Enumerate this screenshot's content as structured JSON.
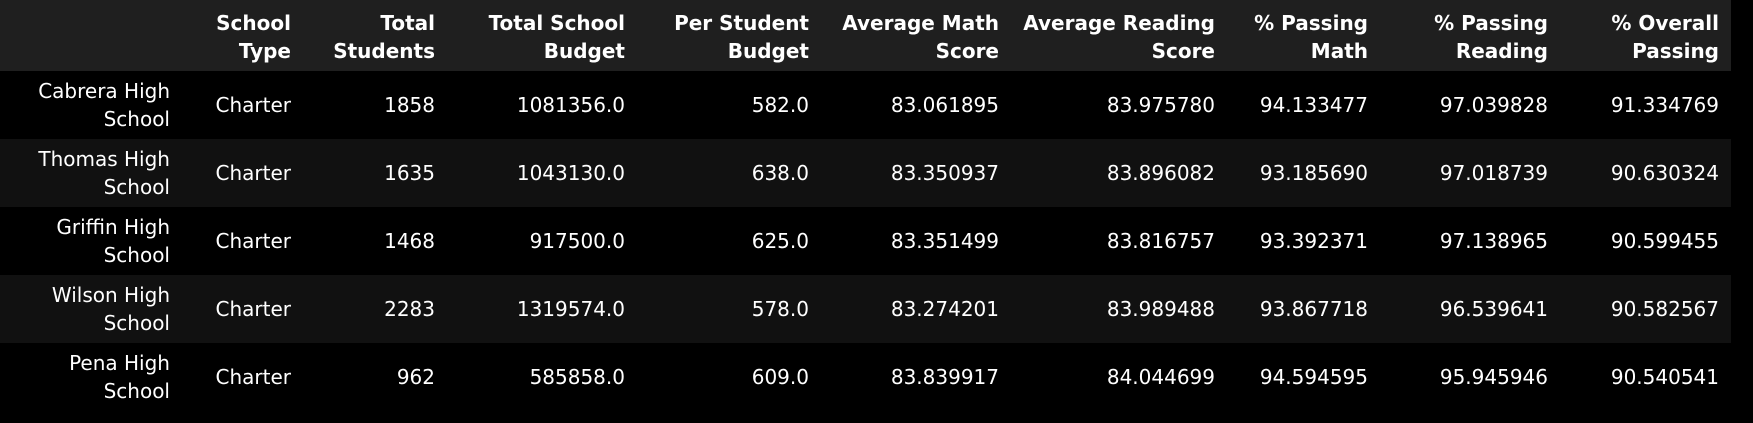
{
  "table": {
    "columns": [
      "",
      "School Type",
      "Total Students",
      "Total School Budget",
      "Per Student Budget",
      "Average Math Score",
      "Average Reading Score",
      "% Passing Math",
      "% Passing Reading",
      "% Overall Passing"
    ],
    "rows": [
      {
        "index": "Cabrera High School",
        "cells": [
          "Charter",
          "1858",
          "1081356.0",
          "582.0",
          "83.061895",
          "83.975780",
          "94.133477",
          "97.039828",
          "91.334769"
        ]
      },
      {
        "index": "Thomas High School",
        "cells": [
          "Charter",
          "1635",
          "1043130.0",
          "638.0",
          "83.350937",
          "83.896082",
          "93.185690",
          "97.018739",
          "90.630324"
        ]
      },
      {
        "index": "Griffin High School",
        "cells": [
          "Charter",
          "1468",
          "917500.0",
          "625.0",
          "83.351499",
          "83.816757",
          "93.392371",
          "97.138965",
          "90.599455"
        ]
      },
      {
        "index": "Wilson High School",
        "cells": [
          "Charter",
          "2283",
          "1319574.0",
          "578.0",
          "83.274201",
          "83.989488",
          "93.867718",
          "96.539641",
          "90.582567"
        ]
      },
      {
        "index": "Pena High School",
        "cells": [
          "Charter",
          "962",
          "585858.0",
          "609.0",
          "83.839917",
          "84.044699",
          "94.594595",
          "95.945946",
          "90.540541"
        ]
      }
    ]
  },
  "colors": {
    "background": "#000000",
    "header_background": "#1f1f1f",
    "stripe_background": "#111111",
    "text": "#ffffff"
  }
}
